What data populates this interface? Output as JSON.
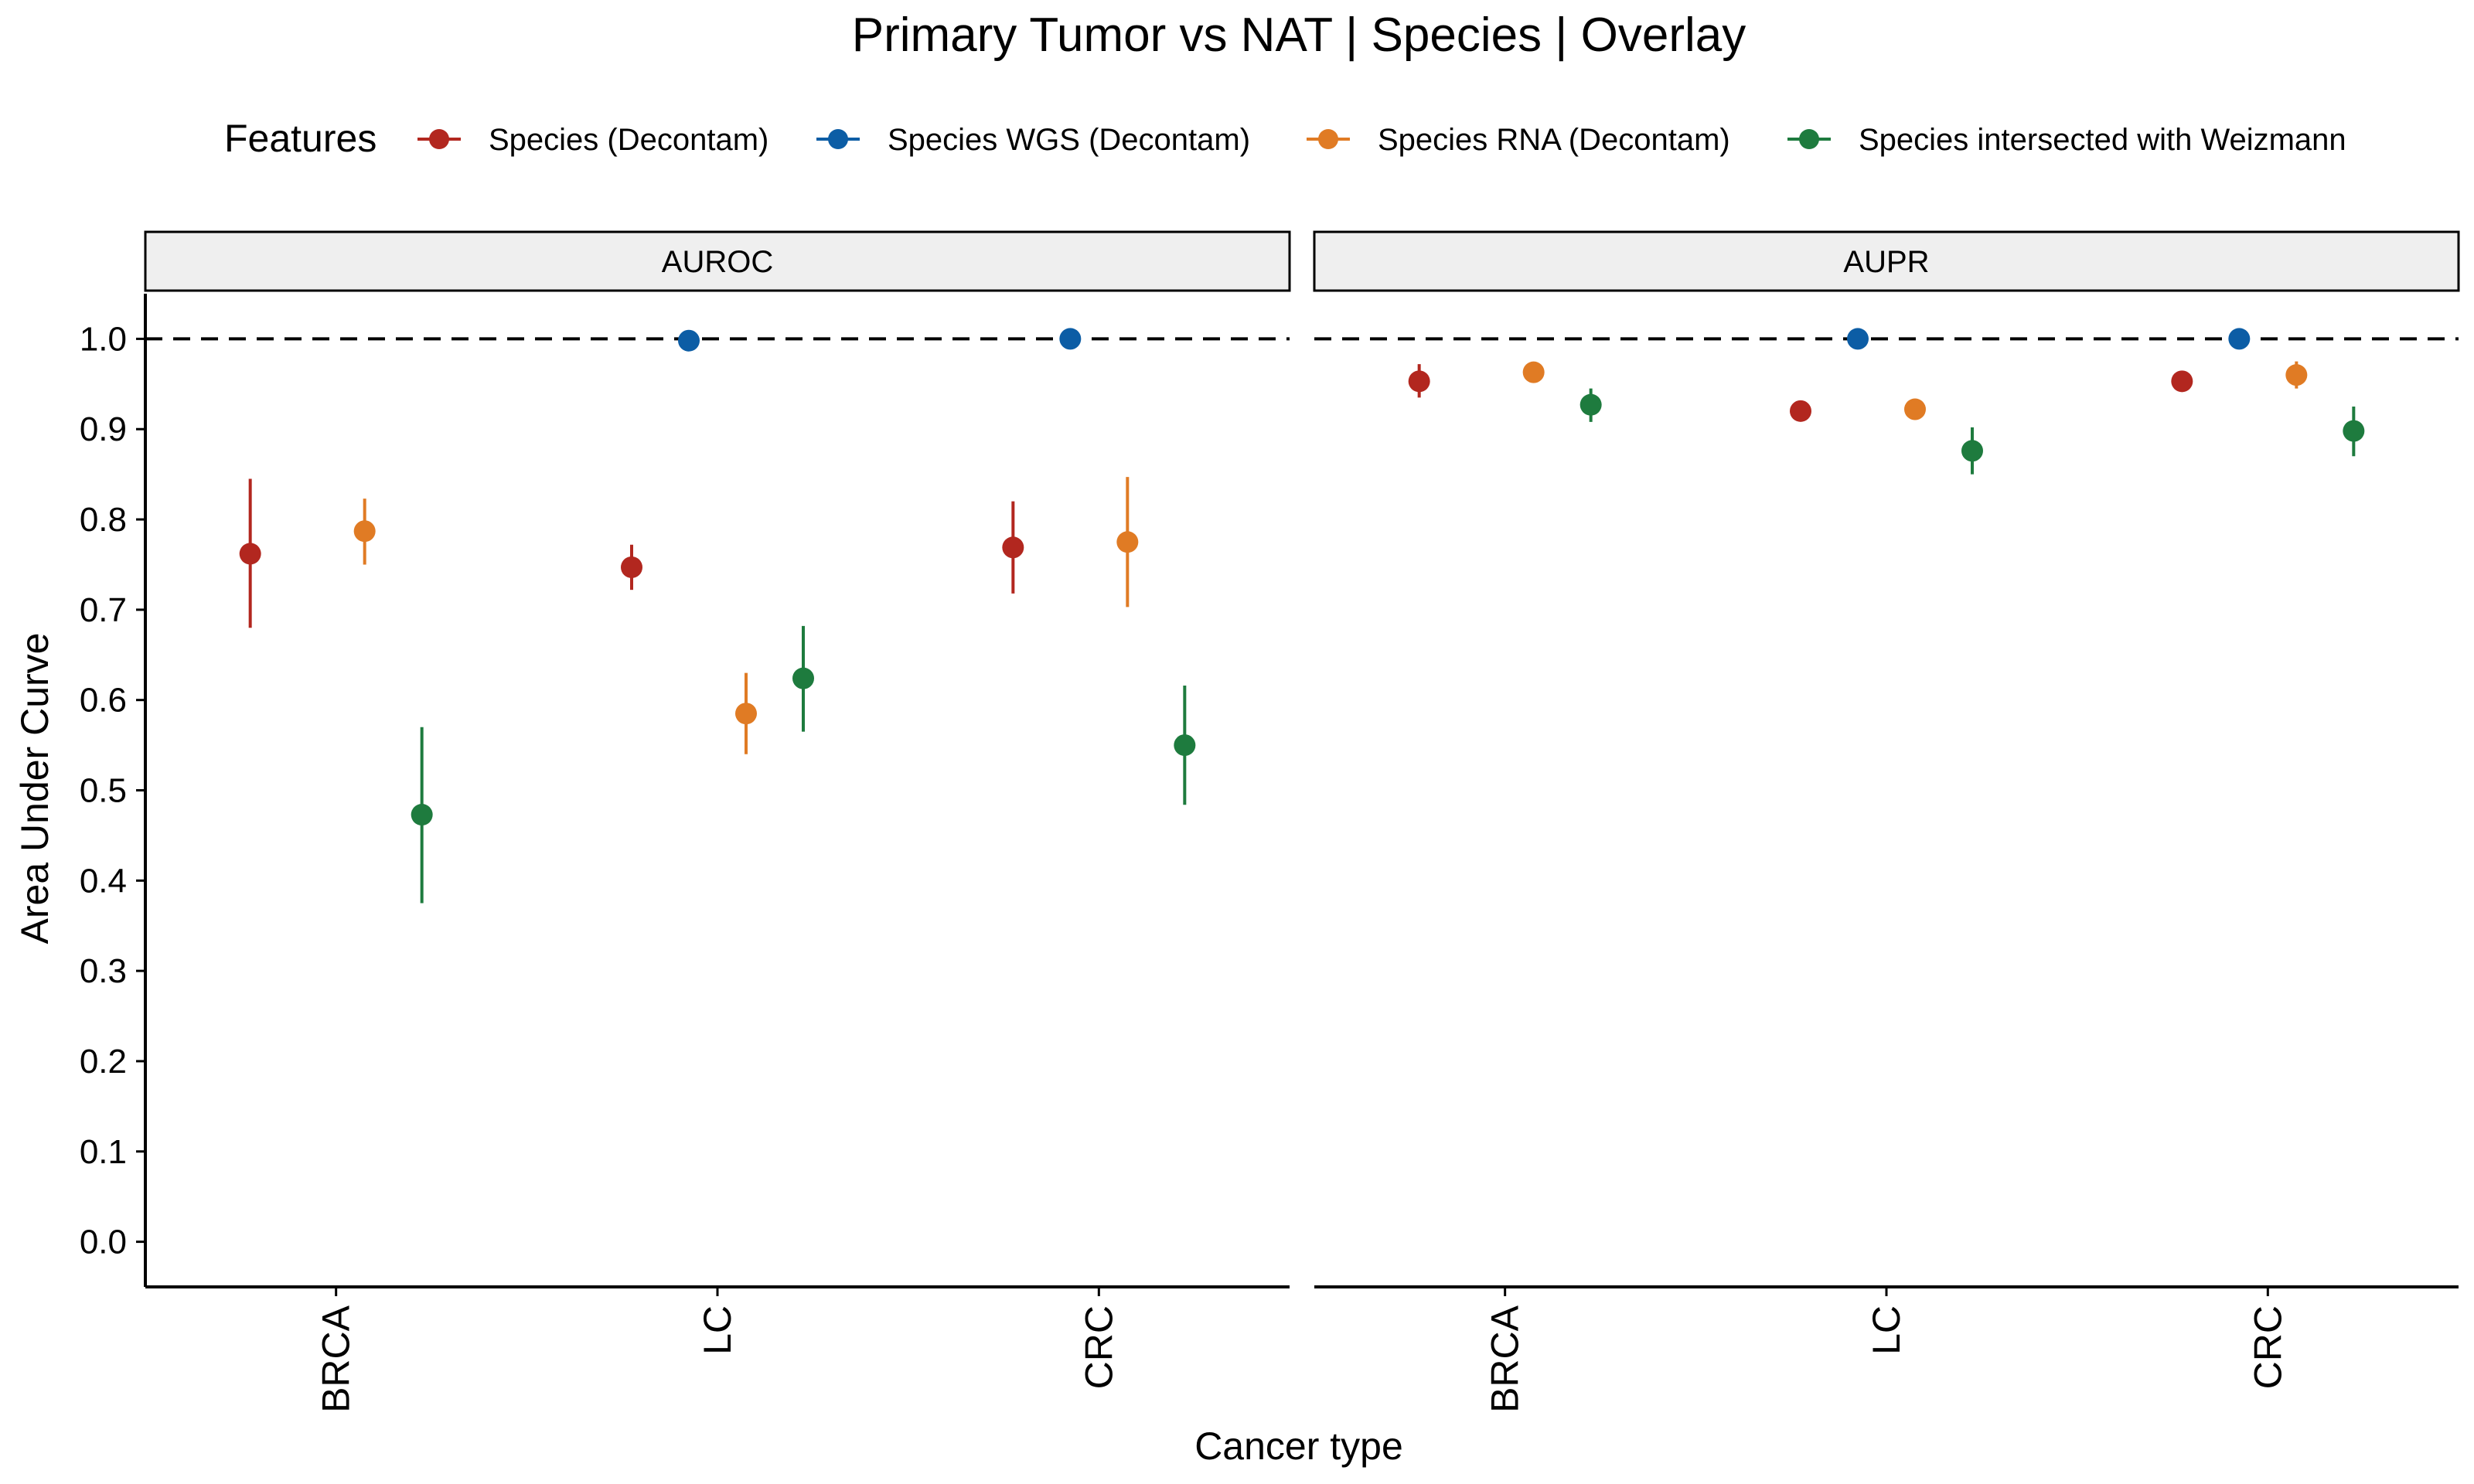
{
  "chart_data": {
    "type": "scatter",
    "title": "Primary Tumor vs NAT | Species | Overlay",
    "xlabel": "Cancer type",
    "ylabel": "Area Under Curve",
    "ylim": [
      -0.05,
      1.05
    ],
    "yticks": [
      "0.0",
      "0.1",
      "0.2",
      "0.3",
      "0.4",
      "0.5",
      "0.6",
      "0.7",
      "0.8",
      "0.9",
      "1.0"
    ],
    "reference_line": 1.0,
    "legend": {
      "title": "Features",
      "position": "top"
    },
    "categories": [
      "BRCA",
      "LC",
      "CRC"
    ],
    "panels": [
      {
        "label": "AUROC"
      },
      {
        "label": "AUPR"
      }
    ],
    "series": [
      {
        "name": "Species (Decontam)",
        "color": "#B2271F",
        "points": [
          {
            "panel": "AUROC",
            "category": "BRCA",
            "y": 0.762,
            "lo": 0.68,
            "hi": 0.845
          },
          {
            "panel": "AUROC",
            "category": "LC",
            "y": 0.747,
            "lo": 0.722,
            "hi": 0.772
          },
          {
            "panel": "AUROC",
            "category": "CRC",
            "y": 0.769,
            "lo": 0.718,
            "hi": 0.82
          },
          {
            "panel": "AUPR",
            "category": "BRCA",
            "y": 0.953,
            "lo": 0.935,
            "hi": 0.972
          },
          {
            "panel": "AUPR",
            "category": "LC",
            "y": 0.92,
            "lo": 0.915,
            "hi": 0.925
          },
          {
            "panel": "AUPR",
            "category": "CRC",
            "y": 0.953,
            "lo": 0.945,
            "hi": 0.962
          }
        ]
      },
      {
        "name": "Species WGS (Decontam)",
        "color": "#0C5DA5",
        "points": [
          {
            "panel": "AUROC",
            "category": "LC",
            "y": 0.998,
            "lo": 0.996,
            "hi": 1.0
          },
          {
            "panel": "AUROC",
            "category": "CRC",
            "y": 1.0,
            "lo": 0.999,
            "hi": 1.0
          },
          {
            "panel": "AUPR",
            "category": "LC",
            "y": 1.0,
            "lo": 0.999,
            "hi": 1.0
          },
          {
            "panel": "AUPR",
            "category": "CRC",
            "y": 1.0,
            "lo": 0.999,
            "hi": 1.0
          }
        ]
      },
      {
        "name": "Species RNA (Decontam)",
        "color": "#E07B24",
        "points": [
          {
            "panel": "AUROC",
            "category": "BRCA",
            "y": 0.787,
            "lo": 0.75,
            "hi": 0.823
          },
          {
            "panel": "AUROC",
            "category": "LC",
            "y": 0.585,
            "lo": 0.54,
            "hi": 0.63
          },
          {
            "panel": "AUROC",
            "category": "CRC",
            "y": 0.775,
            "lo": 0.703,
            "hi": 0.847
          },
          {
            "panel": "AUPR",
            "category": "BRCA",
            "y": 0.963,
            "lo": 0.958,
            "hi": 0.968
          },
          {
            "panel": "AUPR",
            "category": "LC",
            "y": 0.922,
            "lo": 0.917,
            "hi": 0.928
          },
          {
            "panel": "AUPR",
            "category": "CRC",
            "y": 0.96,
            "lo": 0.945,
            "hi": 0.975
          }
        ]
      },
      {
        "name": "Species intersected with Weizmann",
        "color": "#1E7B3E",
        "points": [
          {
            "panel": "AUROC",
            "category": "BRCA",
            "y": 0.473,
            "lo": 0.375,
            "hi": 0.57
          },
          {
            "panel": "AUROC",
            "category": "LC",
            "y": 0.624,
            "lo": 0.565,
            "hi": 0.682
          },
          {
            "panel": "AUROC",
            "category": "CRC",
            "y": 0.55,
            "lo": 0.484,
            "hi": 0.616
          },
          {
            "panel": "AUPR",
            "category": "BRCA",
            "y": 0.927,
            "lo": 0.908,
            "hi": 0.945
          },
          {
            "panel": "AUPR",
            "category": "LC",
            "y": 0.876,
            "lo": 0.85,
            "hi": 0.902
          },
          {
            "panel": "AUPR",
            "category": "CRC",
            "y": 0.898,
            "lo": 0.87,
            "hi": 0.925
          }
        ]
      }
    ]
  }
}
